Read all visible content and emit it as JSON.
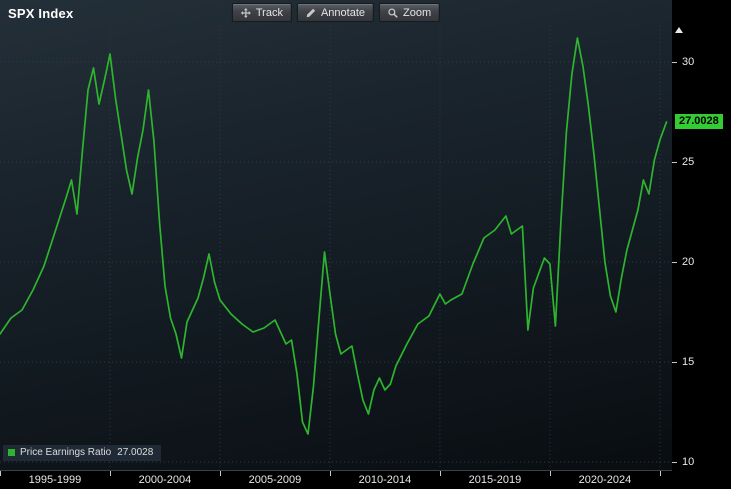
{
  "header": {
    "title": "SPX Index"
  },
  "toolbar": {
    "track_label": "Track",
    "annotate_label": "Annotate",
    "zoom_label": "Zoom"
  },
  "legend": {
    "label": "Price Earnings Ratio",
    "value": "27.0028"
  },
  "axis": {
    "last_value_label": "27.0028"
  },
  "colors": {
    "line": "#2eb52e",
    "badge_bg": "#33cc33",
    "badge_text": "#000000",
    "axis_text": "#e8e8e8"
  },
  "chart_data": {
    "type": "line",
    "title": "SPX Index",
    "grid": "dotted",
    "legend_position": "bottom-left",
    "xlim": [
      1995,
      2025.55
    ],
    "ylim": [
      9.6,
      31.8
    ],
    "y_ticks": [
      10,
      15,
      20,
      25,
      30
    ],
    "x_grid_years": [
      2000,
      2005,
      2010,
      2015,
      2020,
      2025
    ],
    "x_axis_tick_years": [
      1995,
      2000,
      2005,
      2010,
      2015,
      2020,
      2025
    ],
    "x_tick_labels": [
      "1995-1999",
      "2000-2004",
      "2005-2009",
      "2010-2014",
      "2015-2019",
      "2020-2024"
    ],
    "x_label_centers": [
      1997.5,
      2002.5,
      2007.5,
      2012.5,
      2017.5,
      2022.5
    ],
    "last_value": 27.0028,
    "series": [
      {
        "name": "Price Earnings Ratio",
        "color": "#2eb52e",
        "x": [
          1995.0,
          1995.5,
          1996.0,
          1996.5,
          1997.0,
          1997.5,
          1998.0,
          1998.25,
          1998.5,
          1998.75,
          1999.0,
          1999.25,
          1999.5,
          1999.75,
          2000.0,
          2000.25,
          2000.5,
          2000.75,
          2001.0,
          2001.25,
          2001.5,
          2001.75,
          2002.0,
          2002.25,
          2002.5,
          2002.75,
          2003.0,
          2003.25,
          2003.5,
          2004.0,
          2004.25,
          2004.5,
          2004.75,
          2005.0,
          2005.5,
          2006.0,
          2006.5,
          2007.0,
          2007.5,
          2008.0,
          2008.25,
          2008.5,
          2008.75,
          2009.0,
          2009.25,
          2009.5,
          2009.75,
          2010.0,
          2010.25,
          2010.5,
          2011.0,
          2011.25,
          2011.5,
          2011.75,
          2012.0,
          2012.25,
          2012.5,
          2012.75,
          2013.0,
          2013.5,
          2014.0,
          2014.5,
          2015.0,
          2015.25,
          2015.5,
          2016.0,
          2016.5,
          2017.0,
          2017.5,
          2018.0,
          2018.25,
          2018.75,
          2019.0,
          2019.25,
          2019.75,
          2020.0,
          2020.25,
          2020.5,
          2020.75,
          2021.0,
          2021.25,
          2021.5,
          2021.75,
          2022.0,
          2022.5,
          2022.75,
          2023.0,
          2023.25,
          2023.5,
          2024.0,
          2024.25,
          2024.5,
          2024.75,
          2025.0,
          2025.3
        ],
        "values": [
          16.4,
          17.2,
          17.6,
          18.6,
          19.8,
          21.5,
          23.2,
          24.1,
          22.4,
          25.6,
          28.6,
          29.7,
          27.9,
          29.1,
          30.4,
          28.2,
          26.4,
          24.6,
          23.4,
          25.2,
          26.6,
          28.6,
          26.0,
          22.0,
          18.8,
          17.2,
          16.4,
          15.2,
          17.0,
          18.2,
          19.2,
          20.4,
          19.0,
          18.1,
          17.4,
          16.9,
          16.5,
          16.7,
          17.1,
          15.9,
          16.1,
          14.4,
          12.0,
          11.4,
          13.8,
          17.2,
          20.5,
          18.4,
          16.4,
          15.4,
          15.8,
          14.4,
          13.1,
          12.4,
          13.6,
          14.2,
          13.6,
          13.9,
          14.8,
          15.9,
          16.9,
          17.3,
          18.4,
          17.9,
          18.1,
          18.4,
          19.9,
          21.2,
          21.6,
          22.3,
          21.4,
          21.8,
          16.6,
          18.7,
          20.2,
          19.9,
          16.8,
          22.0,
          26.5,
          29.4,
          31.2,
          29.8,
          27.8,
          25.4,
          20.0,
          18.3,
          17.5,
          19.2,
          20.6,
          22.6,
          24.1,
          23.4,
          25.1,
          26.1,
          27.0
        ]
      }
    ]
  }
}
